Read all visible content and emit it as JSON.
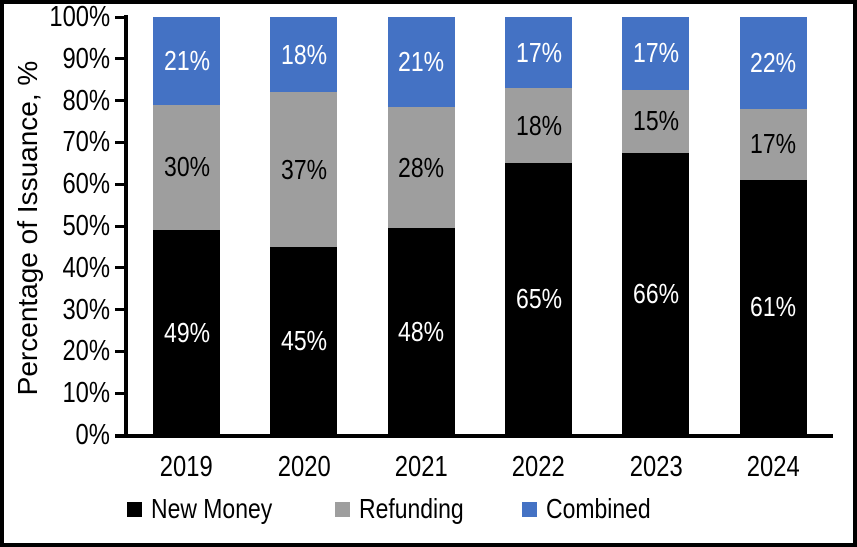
{
  "chart_data": {
    "type": "bar",
    "stacked": true,
    "percent_stacked": true,
    "title": "",
    "ylabel": "Percentage of Issuance, %",
    "xlabel": "",
    "categories": [
      "2019",
      "2020",
      "2021",
      "2022",
      "2023",
      "2024"
    ],
    "series": [
      {
        "name": "New Money",
        "color": "#000000",
        "label_color": "#ffffff",
        "values": [
          49,
          45,
          48,
          65,
          66,
          61
        ]
      },
      {
        "name": "Refunding",
        "color": "#9e9e9e",
        "label_color": "#000000",
        "values": [
          30,
          37,
          28,
          18,
          15,
          17
        ]
      },
      {
        "name": "Combined",
        "color": "#4472c4",
        "label_color": "#ffffff",
        "values": [
          21,
          18,
          21,
          17,
          17,
          22
        ]
      }
    ],
    "value_suffix": "%",
    "ylim": [
      0,
      100
    ],
    "y_tick_step": 10,
    "y_tick_labels": [
      "0%",
      "10%",
      "20%",
      "30%",
      "40%",
      "50%",
      "60%",
      "70%",
      "80%",
      "90%",
      "100%"
    ],
    "grid": false,
    "legend_position": "bottom",
    "axis_color": "#000000",
    "background_color": "#ffffff",
    "border_color": "#000000"
  }
}
